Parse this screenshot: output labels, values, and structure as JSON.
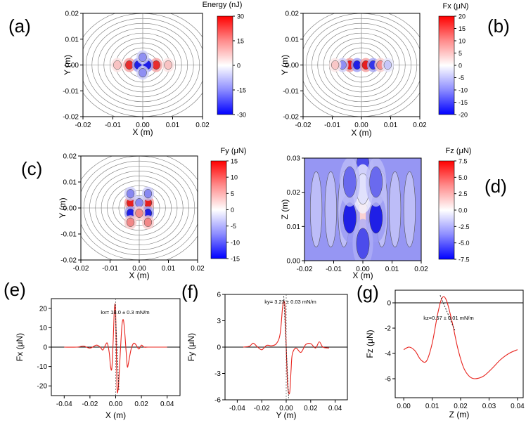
{
  "figure": {
    "panel_letters": [
      "(a)",
      "(b)",
      "(c)",
      "(d)",
      "(e)",
      "(f)",
      "(g)"
    ]
  },
  "colors": {
    "neg": "#1f1fe6",
    "mid": "#ffffff",
    "pos": "#e61f1f",
    "curve": "#e8241e",
    "fit": "#222222",
    "contour": "#7a7a7a"
  },
  "chart_data": [
    {
      "id": "a",
      "type": "heatmap",
      "title": "Energy (nJ)",
      "xlabel": "X (m)",
      "ylabel": "Y (m)",
      "xlim": [
        -0.02,
        0.02
      ],
      "ylim": [
        -0.02,
        0.02
      ],
      "xticks": [
        "-0.02",
        "-0.01",
        "0.00",
        "0.01",
        "0.02"
      ],
      "yticks": [
        "0.02",
        "0.01",
        "0.00",
        "-0.01",
        "-0.02"
      ],
      "colorbar": {
        "range": [
          -30,
          30
        ],
        "ticks": [
          "30",
          "15",
          "0",
          "-15",
          "-30"
        ]
      },
      "lobes": [
        {
          "x": -0.0045,
          "y": 0,
          "value": 28
        },
        {
          "x": 0.0045,
          "y": 0,
          "value": 28
        },
        {
          "x": -0.0015,
          "y": 0,
          "value": -30
        },
        {
          "x": 0.0015,
          "y": 0,
          "value": -30
        },
        {
          "x": 0,
          "y": 0.003,
          "value": -15
        },
        {
          "x": 0,
          "y": -0.003,
          "value": -15
        },
        {
          "x": -0.0085,
          "y": 0,
          "value": 8
        },
        {
          "x": 0.0085,
          "y": 0,
          "value": 8
        }
      ]
    },
    {
      "id": "b",
      "type": "heatmap",
      "title": "Fx (μN)",
      "xlabel": "X (m)",
      "ylabel": "Y (m)",
      "xlim": [
        -0.02,
        0.02
      ],
      "ylim": [
        -0.02,
        0.02
      ],
      "xticks": [
        "-0.02",
        "-0.01",
        "0.00",
        "0.01",
        "0.02"
      ],
      "yticks": [
        "0.02",
        "0.01",
        "0.00",
        "-0.01",
        "-0.02"
      ],
      "colorbar": {
        "range": [
          -20,
          20
        ],
        "ticks": [
          "20",
          "15",
          "10",
          "5",
          "0",
          "-5",
          "-10",
          "-15",
          "-20"
        ]
      },
      "lobes": [
        {
          "x": -0.004,
          "y": 0,
          "value": 20
        },
        {
          "x": -0.0015,
          "y": 0,
          "value": -20
        },
        {
          "x": 0.0015,
          "y": 0,
          "value": 20
        },
        {
          "x": 0.004,
          "y": 0,
          "value": -18
        },
        {
          "x": -0.0065,
          "y": 0,
          "value": -10
        },
        {
          "x": 0.0065,
          "y": 0,
          "value": 10
        },
        {
          "x": -0.009,
          "y": 0,
          "value": 5
        },
        {
          "x": 0.009,
          "y": 0,
          "value": -5
        }
      ]
    },
    {
      "id": "c",
      "type": "heatmap",
      "title": "Fy (μN)",
      "xlabel": "X (m)",
      "ylabel": "Y (m)",
      "xlim": [
        -0.02,
        0.02
      ],
      "ylim": [
        -0.02,
        0.02
      ],
      "xticks": [
        "-0.02",
        "-0.01",
        "0.00",
        "0.01",
        "0.02"
      ],
      "yticks": [
        "0.02",
        "0.01",
        "0.00",
        "-0.01",
        "-0.02"
      ],
      "colorbar": {
        "range": [
          -15,
          15
        ],
        "ticks": [
          "15",
          "10",
          "5",
          "0",
          "-5",
          "-10",
          "-15"
        ]
      },
      "lobes": [
        {
          "x": -0.003,
          "y": 0.002,
          "value": 15
        },
        {
          "x": 0.003,
          "y": 0.002,
          "value": 15
        },
        {
          "x": -0.003,
          "y": -0.002,
          "value": -15
        },
        {
          "x": 0.003,
          "y": -0.002,
          "value": -15
        },
        {
          "x": 0,
          "y": 0.002,
          "value": -8
        },
        {
          "x": 0,
          "y": -0.002,
          "value": 8
        },
        {
          "x": -0.003,
          "y": 0.0055,
          "value": -8
        },
        {
          "x": 0.003,
          "y": 0.0055,
          "value": -8
        },
        {
          "x": -0.003,
          "y": -0.0055,
          "value": 8
        },
        {
          "x": 0.003,
          "y": -0.0055,
          "value": 8
        }
      ]
    },
    {
      "id": "d",
      "type": "heatmap",
      "title": "Fz (μN)",
      "xlabel": "X (m)",
      "ylabel": "Z (m)",
      "xlim": [
        -0.02,
        0.02
      ],
      "ylim": [
        0,
        0.03
      ],
      "xticks": [
        "-0.02",
        "-0.01",
        "0.00",
        "0.01",
        "0.02"
      ],
      "yticks": [
        "0.03",
        "0.02",
        "0.01",
        "0.00"
      ],
      "colorbar": {
        "range": [
          -7.5,
          7.5
        ],
        "ticks": [
          "7.5",
          "5.0",
          "2.5",
          "0.0",
          "-2.5",
          "-5.0",
          "-7.5"
        ]
      },
      "background_value": -3.5,
      "lobes": [
        {
          "x": 0,
          "y": 0.0125,
          "value": 1.5
        },
        {
          "x": -0.0045,
          "y": 0.0125,
          "value": -7.5
        },
        {
          "x": 0.0045,
          "y": 0.0125,
          "value": -7.5
        },
        {
          "x": 0,
          "y": 0.0275,
          "value": -6
        },
        {
          "x": 0,
          "y": 0.021,
          "value": -1
        },
        {
          "x": 0,
          "y": 0.005,
          "value": -6
        },
        {
          "x": -0.0045,
          "y": 0.023,
          "value": -5
        },
        {
          "x": 0.0045,
          "y": 0.023,
          "value": -5
        }
      ]
    },
    {
      "id": "e",
      "type": "line",
      "xlabel": "X (m)",
      "ylabel": "Fx (μN)",
      "xlim": [
        -0.05,
        0.05
      ],
      "ylim": [
        -25,
        25
      ],
      "xticks": [
        "-0.04",
        "-0.02",
        "0.00",
        "0.02",
        "0.04"
      ],
      "yticks": [
        "20",
        "10",
        "0",
        "-10",
        "-20"
      ],
      "annotation": "kx= 18.0 ± 0.3 mN/m",
      "x": [
        -0.04,
        -0.03,
        -0.025,
        -0.02,
        -0.015,
        -0.012,
        -0.01,
        -0.008,
        -0.0065,
        -0.005,
        -0.004,
        -0.003,
        -0.002,
        -0.001,
        0.0,
        0.001,
        0.002,
        0.003,
        0.004,
        0.005,
        0.006,
        0.007,
        0.008,
        0.009,
        0.01,
        0.012,
        0.014,
        0.016,
        0.018,
        0.02,
        0.022,
        0.025,
        0.03,
        0.04
      ],
      "y": [
        0,
        0,
        0.5,
        -0.5,
        1,
        0,
        -1.5,
        1,
        2,
        -3,
        -10,
        -11,
        2,
        20,
        18,
        -20,
        -21,
        -10,
        2,
        12,
        14,
        8,
        -1,
        -10,
        -8,
        -1,
        2,
        1,
        -1,
        1,
        0,
        0,
        0,
        0
      ],
      "fit": {
        "x": [
          -0.0005,
          0.0025
        ],
        "y": [
          22,
          -22
        ]
      }
    },
    {
      "id": "f",
      "type": "line",
      "xlabel": "Y (m)",
      "ylabel": "Fy (μN)",
      "xlim": [
        -0.05,
        0.05
      ],
      "ylim": [
        -6,
        6
      ],
      "xticks": [
        "-0.04",
        "-0.02",
        "0.00",
        "0.02",
        "0.04"
      ],
      "yticks": [
        "6",
        "3",
        "0",
        "-3",
        "-6"
      ],
      "annotation": "ky= 3.23 ± 0.03 mN/m",
      "x": [
        -0.035,
        -0.03,
        -0.027,
        -0.024,
        -0.02,
        -0.016,
        -0.012,
        -0.008,
        -0.005,
        -0.003,
        -0.002,
        -0.001,
        0.0,
        0.001,
        0.002,
        0.003,
        0.004,
        0.005,
        0.008,
        0.012,
        0.016,
        0.02,
        0.024,
        0.027,
        0.03,
        0.035
      ],
      "y": [
        0,
        0.1,
        0.45,
        0.1,
        -0.3,
        0.2,
        0.15,
        0.4,
        1.5,
        4.5,
        5.2,
        4.5,
        0,
        -4,
        -5.2,
        -5,
        -2.5,
        -0.8,
        -0.1,
        -0.6,
        0.3,
        0.4,
        -0.1,
        0.6,
        0,
        -0.1
      ],
      "fit": {
        "x": [
          -0.002,
          0.002
        ],
        "y": [
          5.8,
          -5.8
        ]
      }
    },
    {
      "id": "g",
      "type": "line",
      "xlabel": "Z (m)",
      "ylabel": "Fz (μN)",
      "xlim": [
        -0.003,
        0.042
      ],
      "ylim": [
        -7.5,
        1
      ],
      "xticks": [
        "0.00",
        "0.01",
        "0.02",
        "0.03",
        "0.04"
      ],
      "yticks": [
        "0",
        "-2",
        "-4",
        "-6"
      ],
      "annotation": "kz=0.57 ± 0.01 mN/m",
      "x": [
        0.0,
        0.002,
        0.004,
        0.006,
        0.008,
        0.01,
        0.012,
        0.0135,
        0.015,
        0.017,
        0.019,
        0.021,
        0.023,
        0.025,
        0.028,
        0.031,
        0.034,
        0.037,
        0.04
      ],
      "y": [
        -3.7,
        -3.5,
        -3.8,
        -4.5,
        -4.6,
        -3.2,
        -0.8,
        0.4,
        0.2,
        -1.5,
        -3.6,
        -5.1,
        -5.8,
        -6,
        -5.8,
        -5.2,
        -4.5,
        -4,
        -3.7
      ],
      "fit": {
        "x": [
          0.0128,
          0.018
        ],
        "y": [
          0.6,
          -2.2
        ]
      }
    }
  ]
}
